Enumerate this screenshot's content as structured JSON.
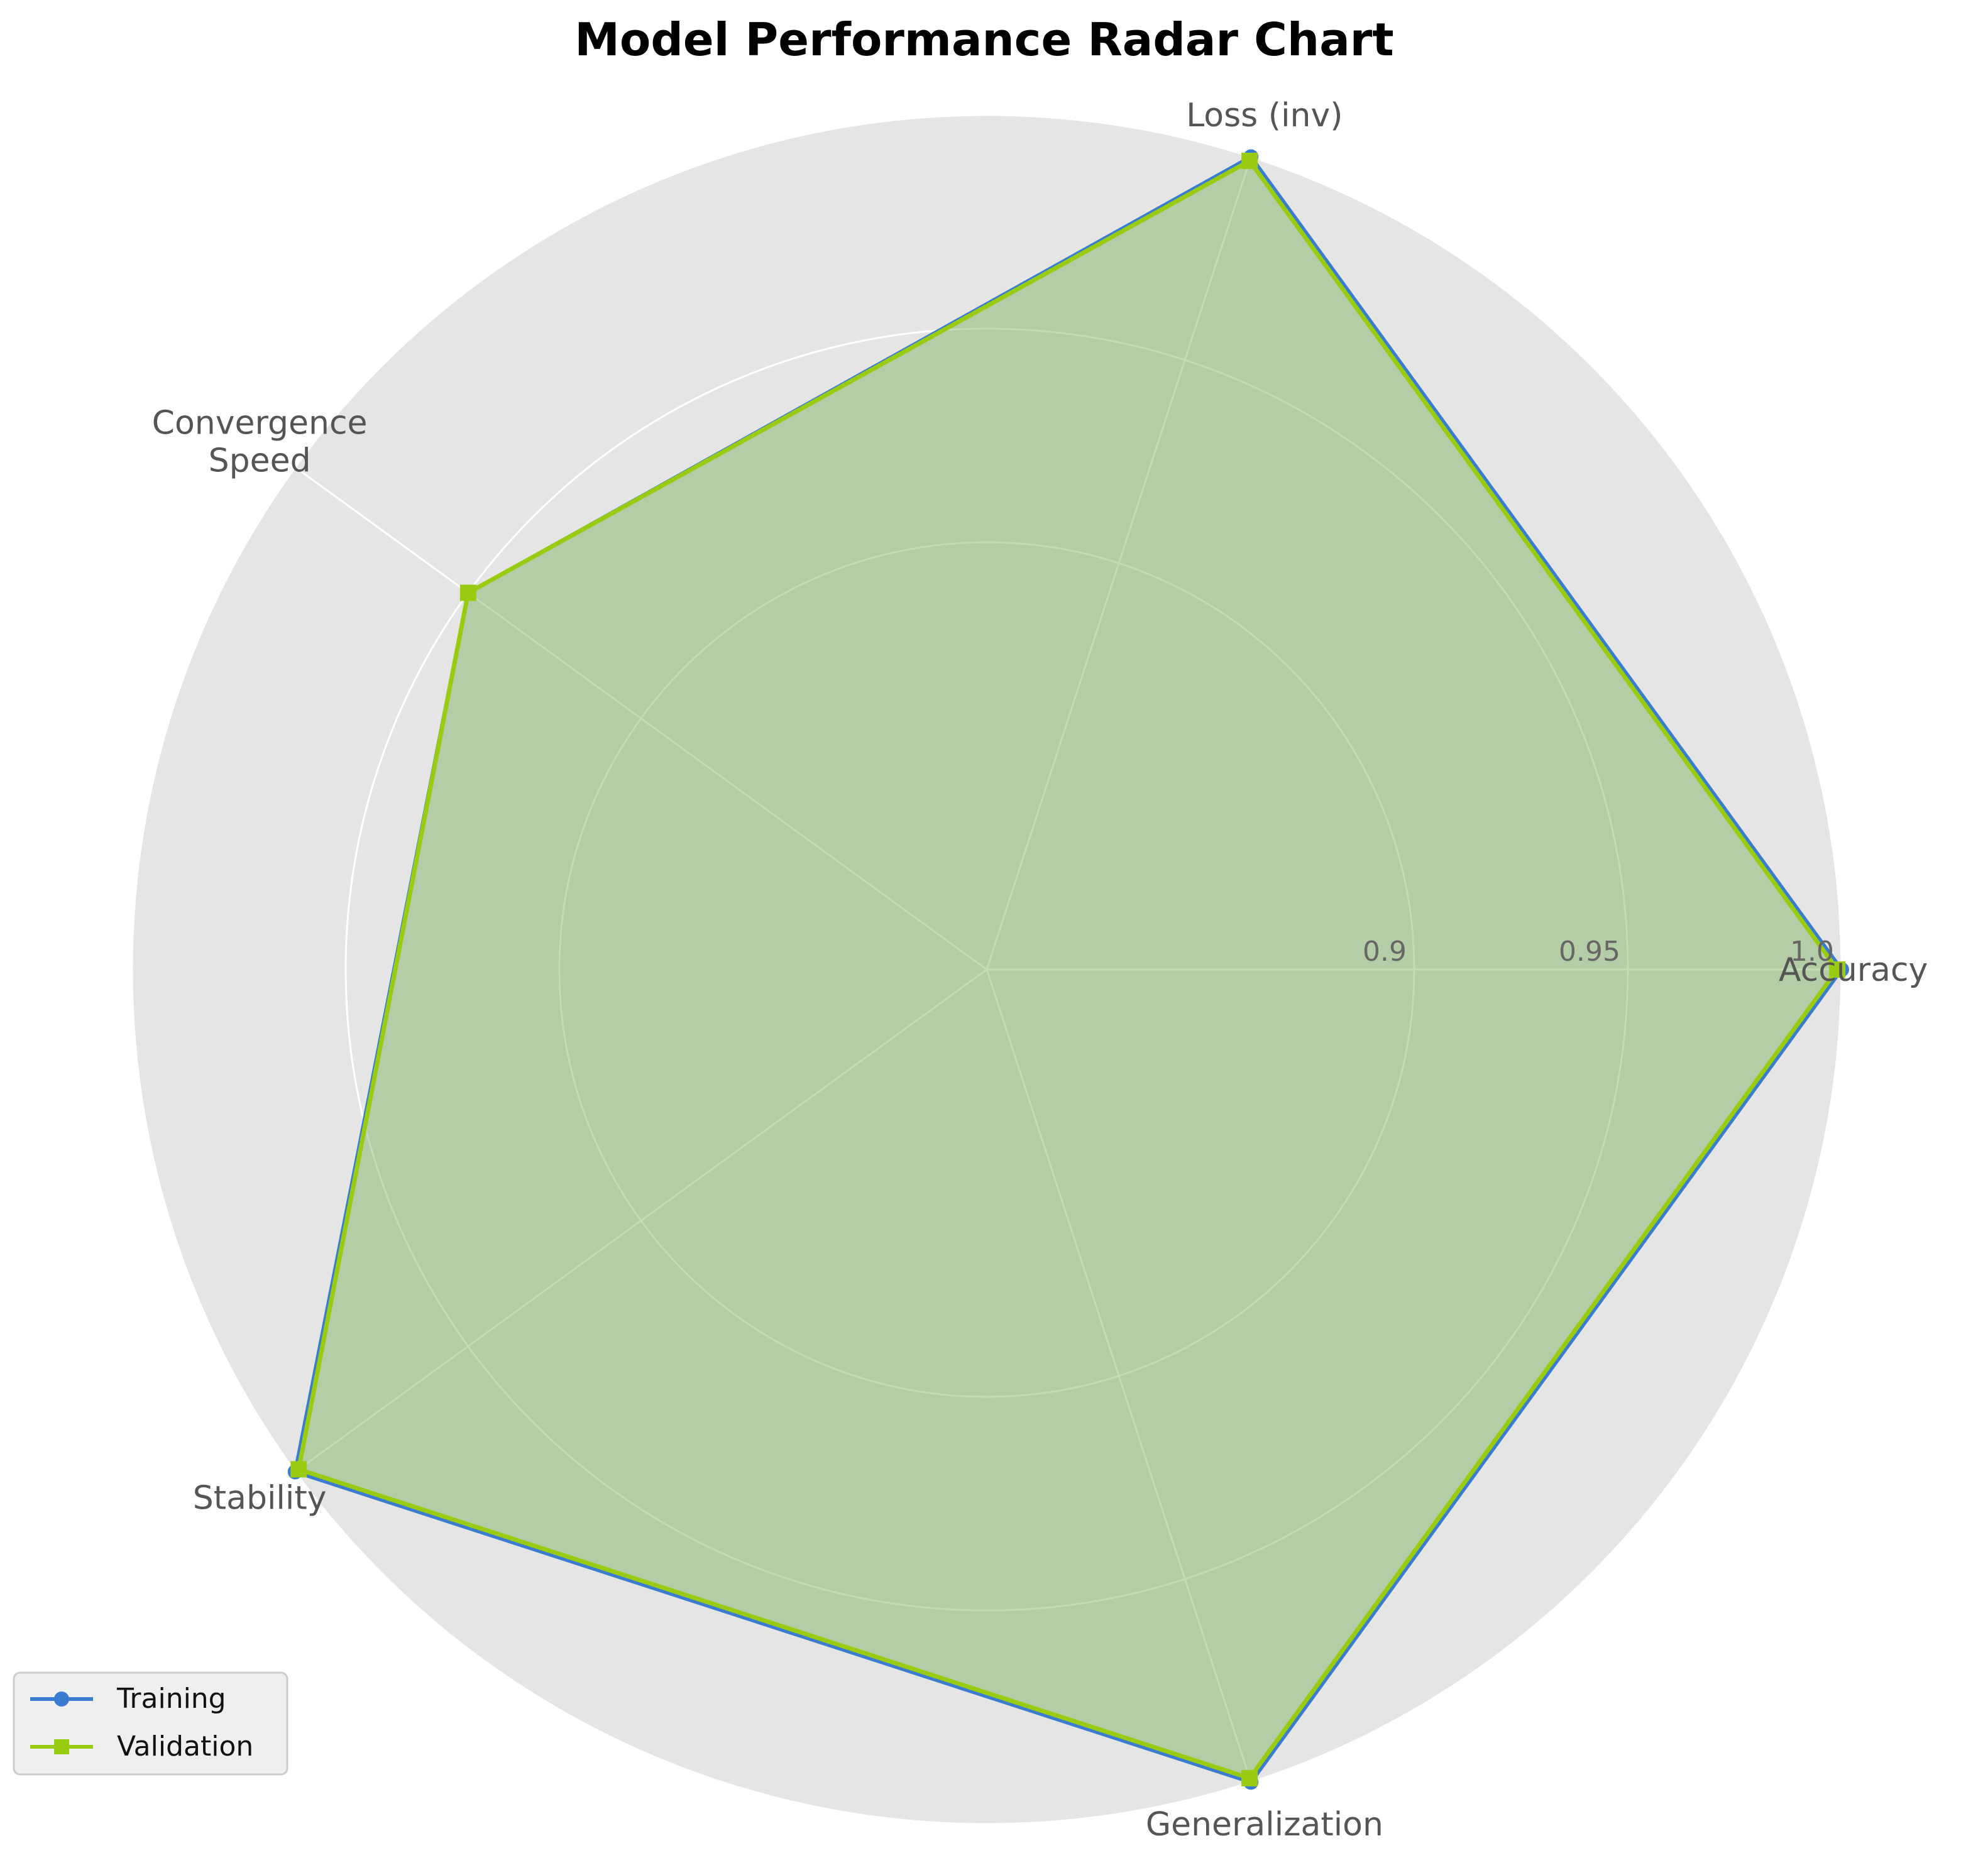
{
  "chart_data": {
    "type": "radar",
    "title": "Model Performance Radar Chart",
    "axes": [
      "Accuracy",
      "Loss (inv)",
      "Convergence\nSpeed",
      "Stability",
      "Generalization"
    ],
    "rlim": [
      0.8,
      1.0
    ],
    "rticks": [
      0.9,
      0.95,
      1.0
    ],
    "rtick_labels": [
      "0.9",
      "0.95",
      "1.0"
    ],
    "grid": true,
    "legend_position": "lower-left",
    "series": [
      {
        "name": "Training",
        "values": [
          1.0,
          1.0,
          0.95,
          1.0,
          1.0
        ],
        "color": "#3a7dd0",
        "marker": "circle"
      },
      {
        "name": "Validation",
        "values": [
          0.999,
          0.999,
          0.95,
          0.999,
          0.999
        ],
        "color": "#99cc11",
        "marker": "square"
      }
    ],
    "fill_color": "#b0cba8",
    "background_color": "#e5e5e5"
  }
}
